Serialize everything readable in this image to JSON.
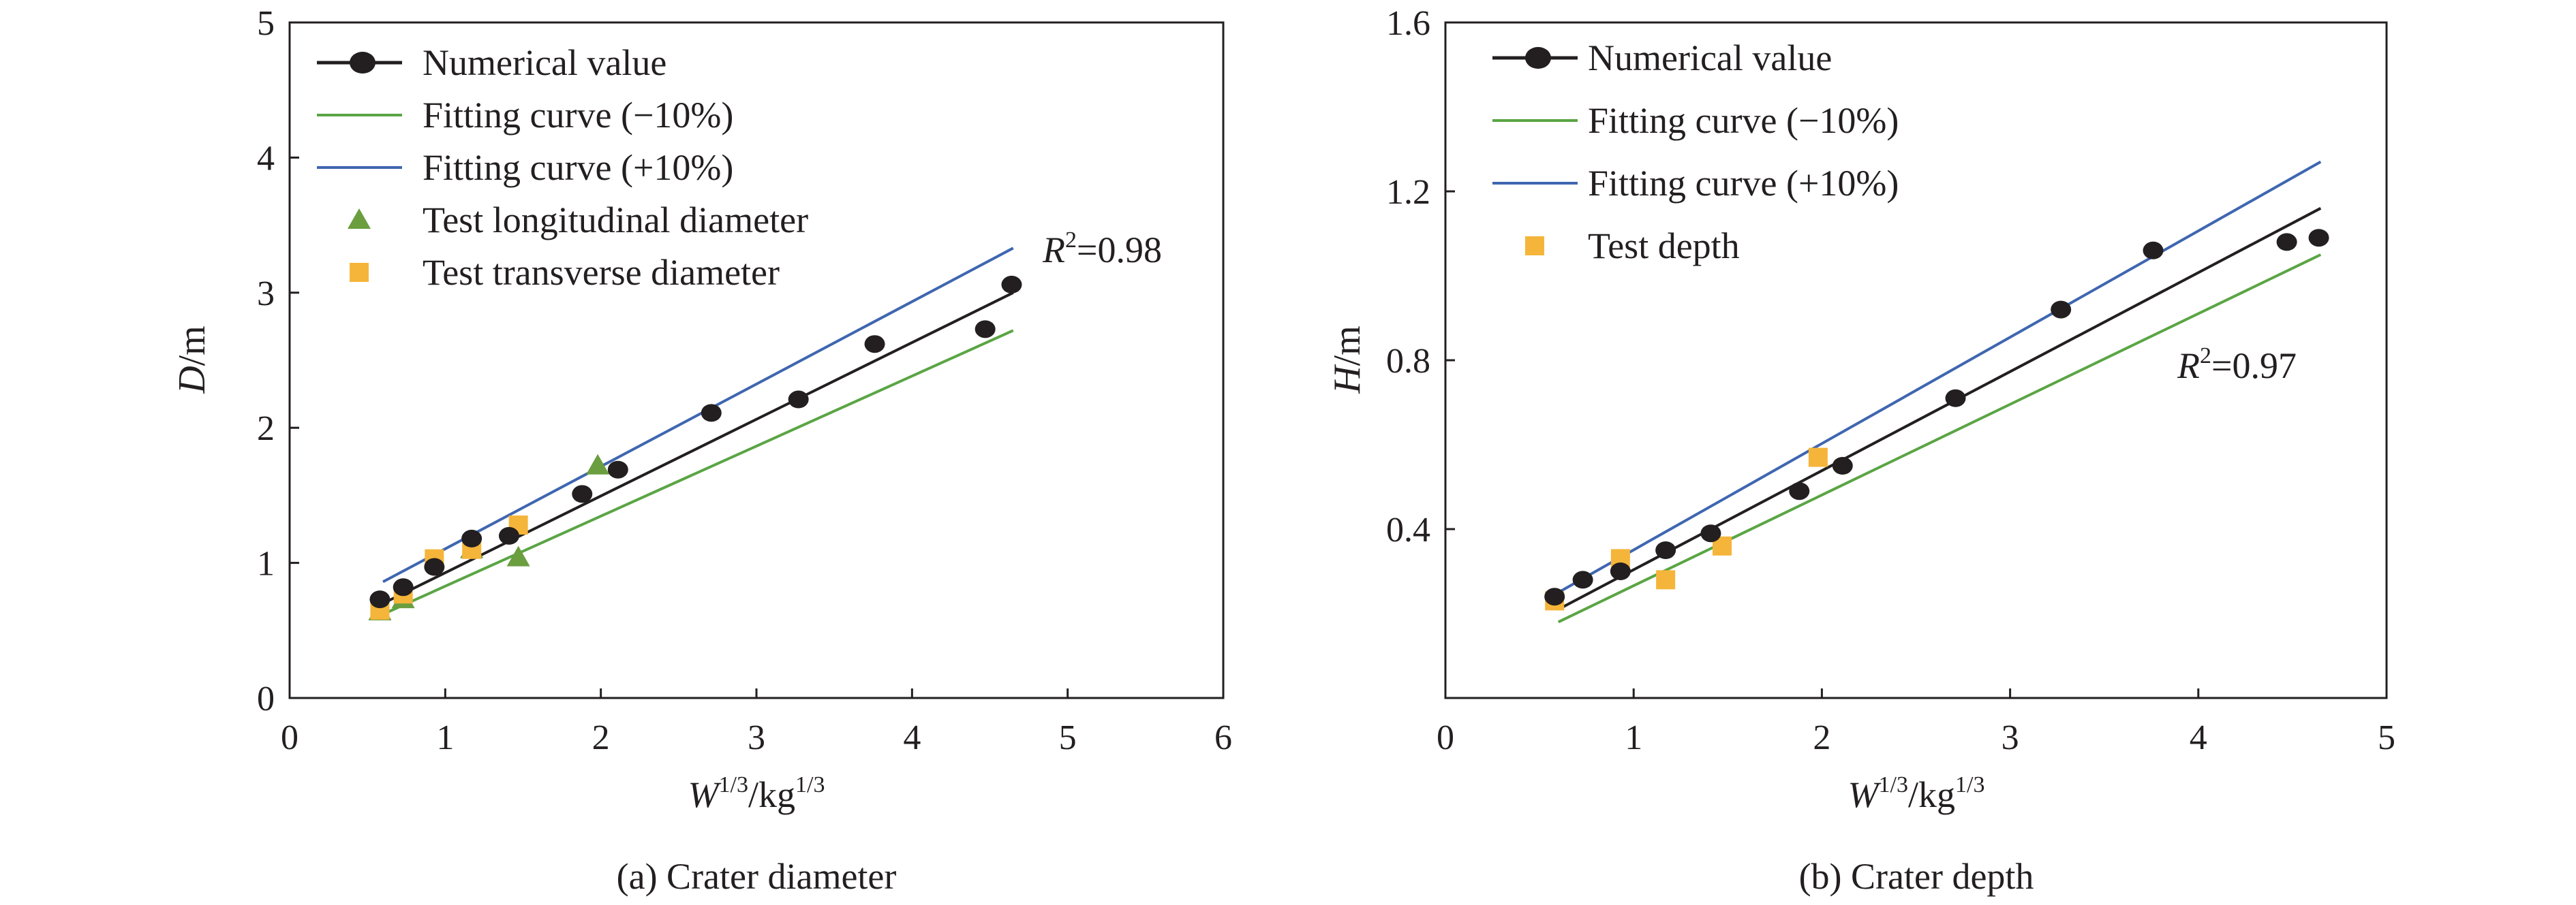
{
  "chart_data": [
    {
      "type": "scatter",
      "caption": "(a) Crater diameter",
      "xlabel": {
        "base": "W",
        "sup1": "1/3",
        "mid": "/kg",
        "sup2": "1/3"
      },
      "ylabel": {
        "italic": "D",
        "rest": "/m"
      },
      "xlim": [
        0,
        6
      ],
      "ylim": [
        0,
        5
      ],
      "xticks": [
        "0",
        "1",
        "2",
        "3",
        "4",
        "5",
        "6"
      ],
      "yticks": [
        "0",
        "1",
        "2",
        "3",
        "4",
        "5"
      ],
      "annotation": {
        "italic": "R",
        "sup": "2",
        "rest": "=0.98"
      },
      "legend": {
        "position": "top-left",
        "entries": [
          {
            "label": "Numerical value",
            "marker": "line-dot",
            "color": "#231f20"
          },
          {
            "label": "Fitting curve (−10%)",
            "marker": "line",
            "color": "#5aa544"
          },
          {
            "label": "Fitting curve (+10%)",
            "marker": "line",
            "color": "#3f66b0"
          },
          {
            "label": "Test longitudinal diameter",
            "marker": "triangle",
            "color": "#6a9e3f"
          },
          {
            "label": "Test transverse diameter",
            "marker": "square",
            "color": "#f5b53a"
          }
        ]
      },
      "lines": [
        {
          "name": "Numerical value",
          "color": "#231f20",
          "points": [
            [
              0.6,
              0.7
            ],
            [
              4.65,
              3.0
            ]
          ]
        },
        {
          "name": "Fitting curve (−10%)",
          "color": "#5aa544",
          "points": [
            [
              0.6,
              0.62
            ],
            [
              4.65,
              2.72
            ]
          ]
        },
        {
          "name": "Fitting curve (+10%)",
          "color": "#3f66b0",
          "points": [
            [
              0.6,
              0.86
            ],
            [
              4.65,
              3.33
            ]
          ]
        }
      ],
      "series": [
        {
          "name": "Numerical value",
          "marker": "circle",
          "color": "#231f20",
          "points": [
            [
              0.58,
              0.73
            ],
            [
              0.73,
              0.82
            ],
            [
              0.93,
              0.97
            ],
            [
              1.17,
              1.18
            ],
            [
              1.41,
              1.2
            ],
            [
              1.88,
              1.51
            ],
            [
              2.11,
              1.69
            ],
            [
              2.71,
              2.11
            ],
            [
              3.27,
              2.21
            ],
            [
              3.76,
              2.62
            ],
            [
              4.47,
              2.73
            ],
            [
              4.64,
              3.06
            ]
          ]
        },
        {
          "name": "Test longitudinal diameter",
          "marker": "triangle",
          "color": "#6a9e3f",
          "points": [
            [
              0.58,
              0.64
            ],
            [
              0.73,
              0.73
            ],
            [
              1.17,
              1.1
            ],
            [
              1.47,
              1.04
            ],
            [
              1.98,
              1.72
            ]
          ]
        },
        {
          "name": "Test transverse diameter",
          "marker": "square",
          "color": "#f5b53a",
          "points": [
            [
              0.58,
              0.65
            ],
            [
              0.73,
              0.77
            ],
            [
              0.93,
              1.03
            ],
            [
              1.17,
              1.1
            ],
            [
              1.47,
              1.28
            ]
          ]
        }
      ]
    },
    {
      "type": "scatter",
      "caption": "(b) Crater depth",
      "xlabel": {
        "base": "W",
        "sup1": "1/3",
        "mid": "/kg",
        "sup2": "1/3"
      },
      "ylabel": {
        "italic": "H",
        "rest": "/m"
      },
      "xlim": [
        0,
        5
      ],
      "ylim": [
        0,
        1.6
      ],
      "xticks": [
        "0",
        "1",
        "2",
        "3",
        "4",
        "5"
      ],
      "yticks": [
        "0.4",
        "0.8",
        "1.2",
        "1.6"
      ],
      "annotation": {
        "italic": "R",
        "sup": "2",
        "rest": "=0.97"
      },
      "legend": {
        "position": "top-left",
        "entries": [
          {
            "label": "Numerical value",
            "marker": "line-dot",
            "color": "#231f20"
          },
          {
            "label": "Fitting curve (−10%)",
            "marker": "line",
            "color": "#5aa544"
          },
          {
            "label": "Fitting curve (+10%)",
            "marker": "line",
            "color": "#3f66b0"
          },
          {
            "label": "Test depth",
            "marker": "square",
            "color": "#f5b53a"
          }
        ]
      },
      "lines": [
        {
          "name": "Numerical value",
          "color": "#231f20",
          "points": [
            [
              0.6,
              0.21
            ],
            [
              4.65,
              1.16
            ]
          ]
        },
        {
          "name": "Fitting curve (−10%)",
          "color": "#5aa544",
          "points": [
            [
              0.6,
              0.18
            ],
            [
              4.65,
              1.05
            ]
          ]
        },
        {
          "name": "Fitting curve (+10%)",
          "color": "#3f66b0",
          "points": [
            [
              0.6,
              0.25
            ],
            [
              4.65,
              1.27
            ]
          ]
        }
      ],
      "series": [
        {
          "name": "Numerical value",
          "marker": "circle",
          "color": "#231f20",
          "points": [
            [
              0.58,
              0.24
            ],
            [
              0.73,
              0.28
            ],
            [
              0.93,
              0.3
            ],
            [
              1.17,
              0.35
            ],
            [
              1.41,
              0.39
            ],
            [
              1.88,
              0.49
            ],
            [
              2.11,
              0.55
            ],
            [
              2.71,
              0.71
            ],
            [
              3.27,
              0.92
            ],
            [
              3.76,
              1.06
            ],
            [
              4.47,
              1.08
            ],
            [
              4.64,
              1.09
            ]
          ]
        },
        {
          "name": "Test depth",
          "marker": "square",
          "color": "#f5b53a",
          "points": [
            [
              0.58,
              0.23
            ],
            [
              0.93,
              0.33
            ],
            [
              1.17,
              0.28
            ],
            [
              1.47,
              0.36
            ],
            [
              1.98,
              0.57
            ]
          ]
        }
      ]
    }
  ]
}
